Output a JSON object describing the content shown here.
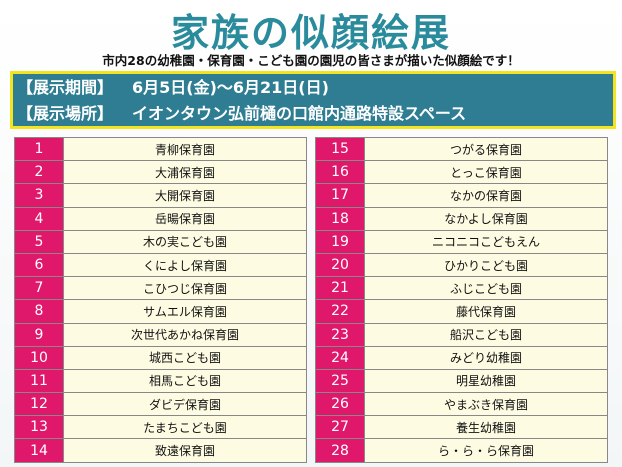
{
  "header": {
    "title": "家族の似顔絵展",
    "subtitle": "市内28の幼稚園・保育園・こども園の園児の皆さまが描いた似顔絵です！"
  },
  "info": {
    "period_label": "【展示期間】",
    "period": "6月5日(金)～6月21日(日)",
    "venue_label": "【展示場所】",
    "venue": "イオンタウン弘前樋の口館内通路特設スペース"
  },
  "table": {
    "entries": [
      {
        "no": 1,
        "name": "青柳保育園"
      },
      {
        "no": 2,
        "name": "大浦保育園"
      },
      {
        "no": 3,
        "name": "大開保育園"
      },
      {
        "no": 4,
        "name": "岳暘保育園"
      },
      {
        "no": 5,
        "name": "木の実こども園"
      },
      {
        "no": 6,
        "name": "くによし保育園"
      },
      {
        "no": 7,
        "name": "こひつじ保育園"
      },
      {
        "no": 8,
        "name": "サムエル保育園"
      },
      {
        "no": 9,
        "name": "次世代あかね保育園"
      },
      {
        "no": 10,
        "name": "城西こども園"
      },
      {
        "no": 11,
        "name": "相馬こども園"
      },
      {
        "no": 12,
        "name": "ダビデ保育園"
      },
      {
        "no": 13,
        "name": "たまちこども園"
      },
      {
        "no": 14,
        "name": "致遠保育園"
      },
      {
        "no": 15,
        "name": "つがる保育園"
      },
      {
        "no": 16,
        "name": "とっこ保育園"
      },
      {
        "no": 17,
        "name": "なかの保育園"
      },
      {
        "no": 18,
        "name": "なかよし保育園"
      },
      {
        "no": 19,
        "name": "ニコニコこどもえん"
      },
      {
        "no": 20,
        "name": "ひかりこども園"
      },
      {
        "no": 21,
        "name": "ふじこども園"
      },
      {
        "no": 22,
        "name": "藤代保育園"
      },
      {
        "no": 23,
        "name": "船沢こども園"
      },
      {
        "no": 24,
        "name": "みどり幼稚園"
      },
      {
        "no": 25,
        "name": "明星幼稚園"
      },
      {
        "no": 26,
        "name": "やまぶき保育園"
      },
      {
        "no": 27,
        "name": "養生幼稚園"
      },
      {
        "no": 28,
        "name": "ら・ら・ら保育園"
      }
    ]
  }
}
